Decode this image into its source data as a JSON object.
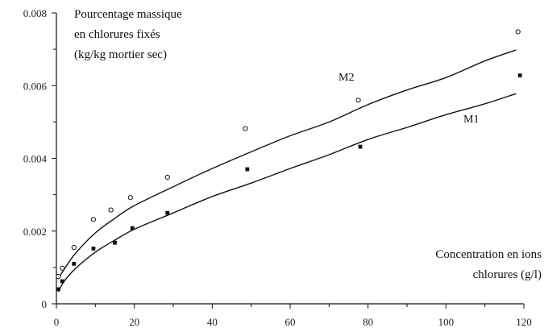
{
  "chart_data": {
    "type": "scatter",
    "title": "",
    "ylabel_lines": [
      "Pourcentage massique",
      "en chlorures fixés",
      "(kg/kg mortier sec)"
    ],
    "xlabel_lines": [
      "Concentration en ions",
      "chlorures (g/l)"
    ],
    "xlim": [
      0,
      120
    ],
    "ylim": [
      0,
      0.008
    ],
    "x_ticks": [
      "0",
      "20",
      "40",
      "60",
      "80",
      "100",
      "120"
    ],
    "y_ticks": [
      "0",
      "0.002",
      "0.004",
      "0.006",
      "0.008"
    ],
    "grid": false,
    "legend": "none",
    "series": [
      {
        "name": "M2",
        "marker": "open-circle",
        "points": [
          {
            "x": 0.5,
            "y": 0.00075
          },
          {
            "x": 1.5,
            "y": 0.00098
          },
          {
            "x": 4.5,
            "y": 0.00155
          },
          {
            "x": 9.5,
            "y": 0.00232
          },
          {
            "x": 14,
            "y": 0.00258
          },
          {
            "x": 19,
            "y": 0.00292
          },
          {
            "x": 28.5,
            "y": 0.00348
          },
          {
            "x": 48.5,
            "y": 0.00482
          },
          {
            "x": 77.5,
            "y": 0.0056
          },
          {
            "x": 118.5,
            "y": 0.00748
          }
        ],
        "fit": [
          {
            "x": 0.5,
            "y": 0.00068
          },
          {
            "x": 2,
            "y": 0.00095
          },
          {
            "x": 5,
            "y": 0.0014
          },
          {
            "x": 10,
            "y": 0.00195
          },
          {
            "x": 15,
            "y": 0.00235
          },
          {
            "x": 20,
            "y": 0.0027
          },
          {
            "x": 30,
            "y": 0.00322
          },
          {
            "x": 40,
            "y": 0.00372
          },
          {
            "x": 50,
            "y": 0.00418
          },
          {
            "x": 60,
            "y": 0.00462
          },
          {
            "x": 70,
            "y": 0.005
          },
          {
            "x": 80,
            "y": 0.00548
          },
          {
            "x": 90,
            "y": 0.00588
          },
          {
            "x": 100,
            "y": 0.00622
          },
          {
            "x": 110,
            "y": 0.00668
          },
          {
            "x": 118,
            "y": 0.00698
          }
        ]
      },
      {
        "name": "M1",
        "marker": "filled-square",
        "points": [
          {
            "x": 0.5,
            "y": 0.0004
          },
          {
            "x": 1.5,
            "y": 0.00062
          },
          {
            "x": 4.5,
            "y": 0.0011
          },
          {
            "x": 9.5,
            "y": 0.00152
          },
          {
            "x": 15,
            "y": 0.00168
          },
          {
            "x": 19.5,
            "y": 0.00208
          },
          {
            "x": 28.5,
            "y": 0.0025
          },
          {
            "x": 49,
            "y": 0.0037
          },
          {
            "x": 78,
            "y": 0.00432
          },
          {
            "x": 119,
            "y": 0.00628
          }
        ],
        "fit": [
          {
            "x": 0.5,
            "y": 0.00033
          },
          {
            "x": 2,
            "y": 0.00062
          },
          {
            "x": 5,
            "y": 0.00098
          },
          {
            "x": 10,
            "y": 0.00142
          },
          {
            "x": 15,
            "y": 0.00175
          },
          {
            "x": 20,
            "y": 0.00205
          },
          {
            "x": 30,
            "y": 0.0025
          },
          {
            "x": 40,
            "y": 0.00295
          },
          {
            "x": 50,
            "y": 0.00332
          },
          {
            "x": 60,
            "y": 0.00372
          },
          {
            "x": 70,
            "y": 0.0041
          },
          {
            "x": 80,
            "y": 0.00452
          },
          {
            "x": 90,
            "y": 0.00485
          },
          {
            "x": 100,
            "y": 0.0052
          },
          {
            "x": 110,
            "y": 0.0055
          },
          {
            "x": 118,
            "y": 0.00578
          }
        ]
      }
    ],
    "colors": {
      "ink": "#111111",
      "background": "#ffffff"
    }
  }
}
